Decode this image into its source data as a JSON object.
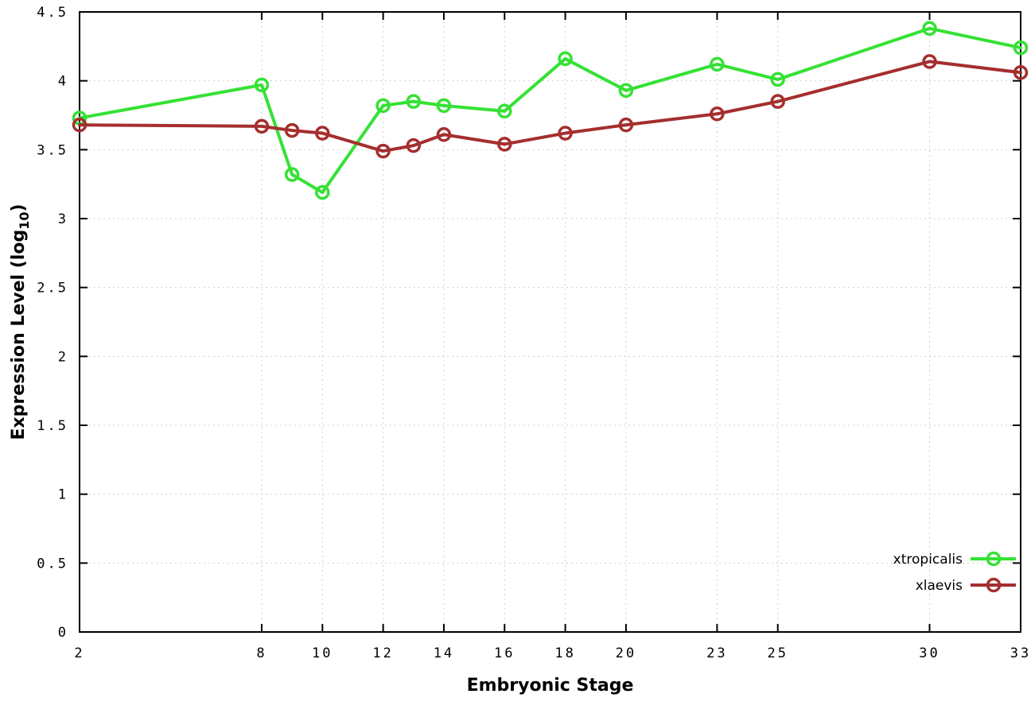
{
  "chart_data": {
    "type": "line",
    "title": "",
    "xlabel": "Embryonic Stage",
    "ylabel": "Expression Level (log10)",
    "xlim": [
      2,
      33
    ],
    "ylim": [
      0,
      4.5
    ],
    "x_ticks": [
      2,
      8,
      10,
      12,
      14,
      16,
      18,
      20,
      23,
      25,
      30,
      33
    ],
    "y_ticks": [
      0,
      0.5,
      1,
      1.5,
      2,
      2.5,
      3,
      3.5,
      4,
      4.5
    ],
    "grid": true,
    "legend_position": "bottom-right",
    "x": [
      2,
      8,
      9,
      10,
      12,
      13,
      14,
      16,
      18,
      20,
      23,
      25,
      30,
      33
    ],
    "series": [
      {
        "name": "xtropicalis",
        "color": "#35e135",
        "values": [
          3.73,
          3.97,
          3.32,
          3.19,
          3.82,
          3.85,
          3.82,
          3.78,
          4.16,
          3.93,
          4.12,
          4.01,
          4.38,
          4.24
        ]
      },
      {
        "name": "xlaevis",
        "color": "#a52e2e",
        "values": [
          3.68,
          3.67,
          3.64,
          3.62,
          3.49,
          3.53,
          3.61,
          3.54,
          3.62,
          3.68,
          3.76,
          3.85,
          4.14,
          4.06
        ]
      }
    ],
    "style": {
      "grid_color": "#cfcfcf",
      "border_color": "#000000",
      "background": "#ffffff"
    }
  }
}
